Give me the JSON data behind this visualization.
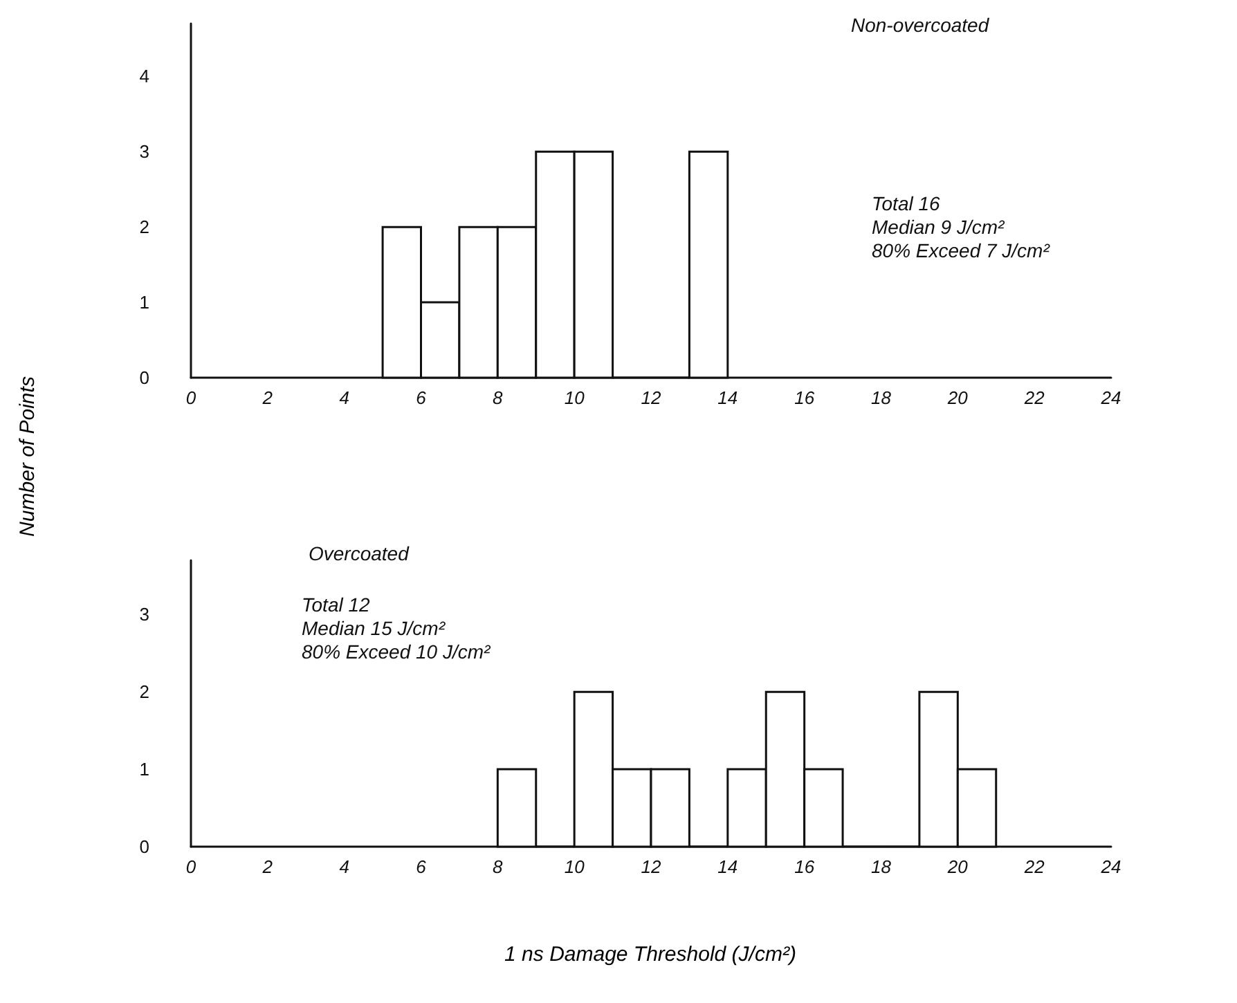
{
  "chart_data": [
    {
      "type": "histogram",
      "title": "Non-overcoated",
      "ylabel": "Number of Points",
      "bins": [
        5,
        6,
        7,
        8,
        9,
        10,
        11,
        12,
        13,
        14
      ],
      "values": [
        2,
        1,
        2,
        2,
        3,
        3,
        0,
        0,
        3
      ],
      "color": "#ffffff",
      "xlim": [
        0,
        24
      ],
      "xticks": [
        0,
        2,
        4,
        6,
        8,
        10,
        12,
        14,
        16,
        18,
        20,
        22,
        24
      ],
      "ylim": [
        0,
        4.7
      ],
      "yticks": [
        0,
        1,
        2,
        3,
        4
      ],
      "grid": false,
      "annotations": [
        "Total 16",
        "Median 9 J/cm²",
        "80% Exceed 7 J/cm²"
      ]
    },
    {
      "type": "histogram",
      "title": "Overcoated",
      "xlabel": "1 ns Damage Threshold (J/cm²)",
      "bins": [
        8,
        9,
        10,
        11,
        12,
        13,
        14,
        15,
        16,
        17,
        18,
        19,
        20,
        21
      ],
      "values": [
        1,
        0,
        2,
        1,
        1,
        0,
        1,
        2,
        1,
        0,
        0,
        2,
        1
      ],
      "color": "#ffffff",
      "xlim": [
        0,
        24
      ],
      "xticks": [
        0,
        2,
        4,
        6,
        8,
        10,
        12,
        14,
        16,
        18,
        20,
        22,
        24
      ],
      "ylim": [
        0,
        3.7
      ],
      "yticks": [
        0,
        1,
        2,
        3
      ],
      "grid": false,
      "annotations": [
        "Total 12",
        "Median 15 J/cm²",
        "80% Exceed 10 J/cm²"
      ]
    }
  ]
}
